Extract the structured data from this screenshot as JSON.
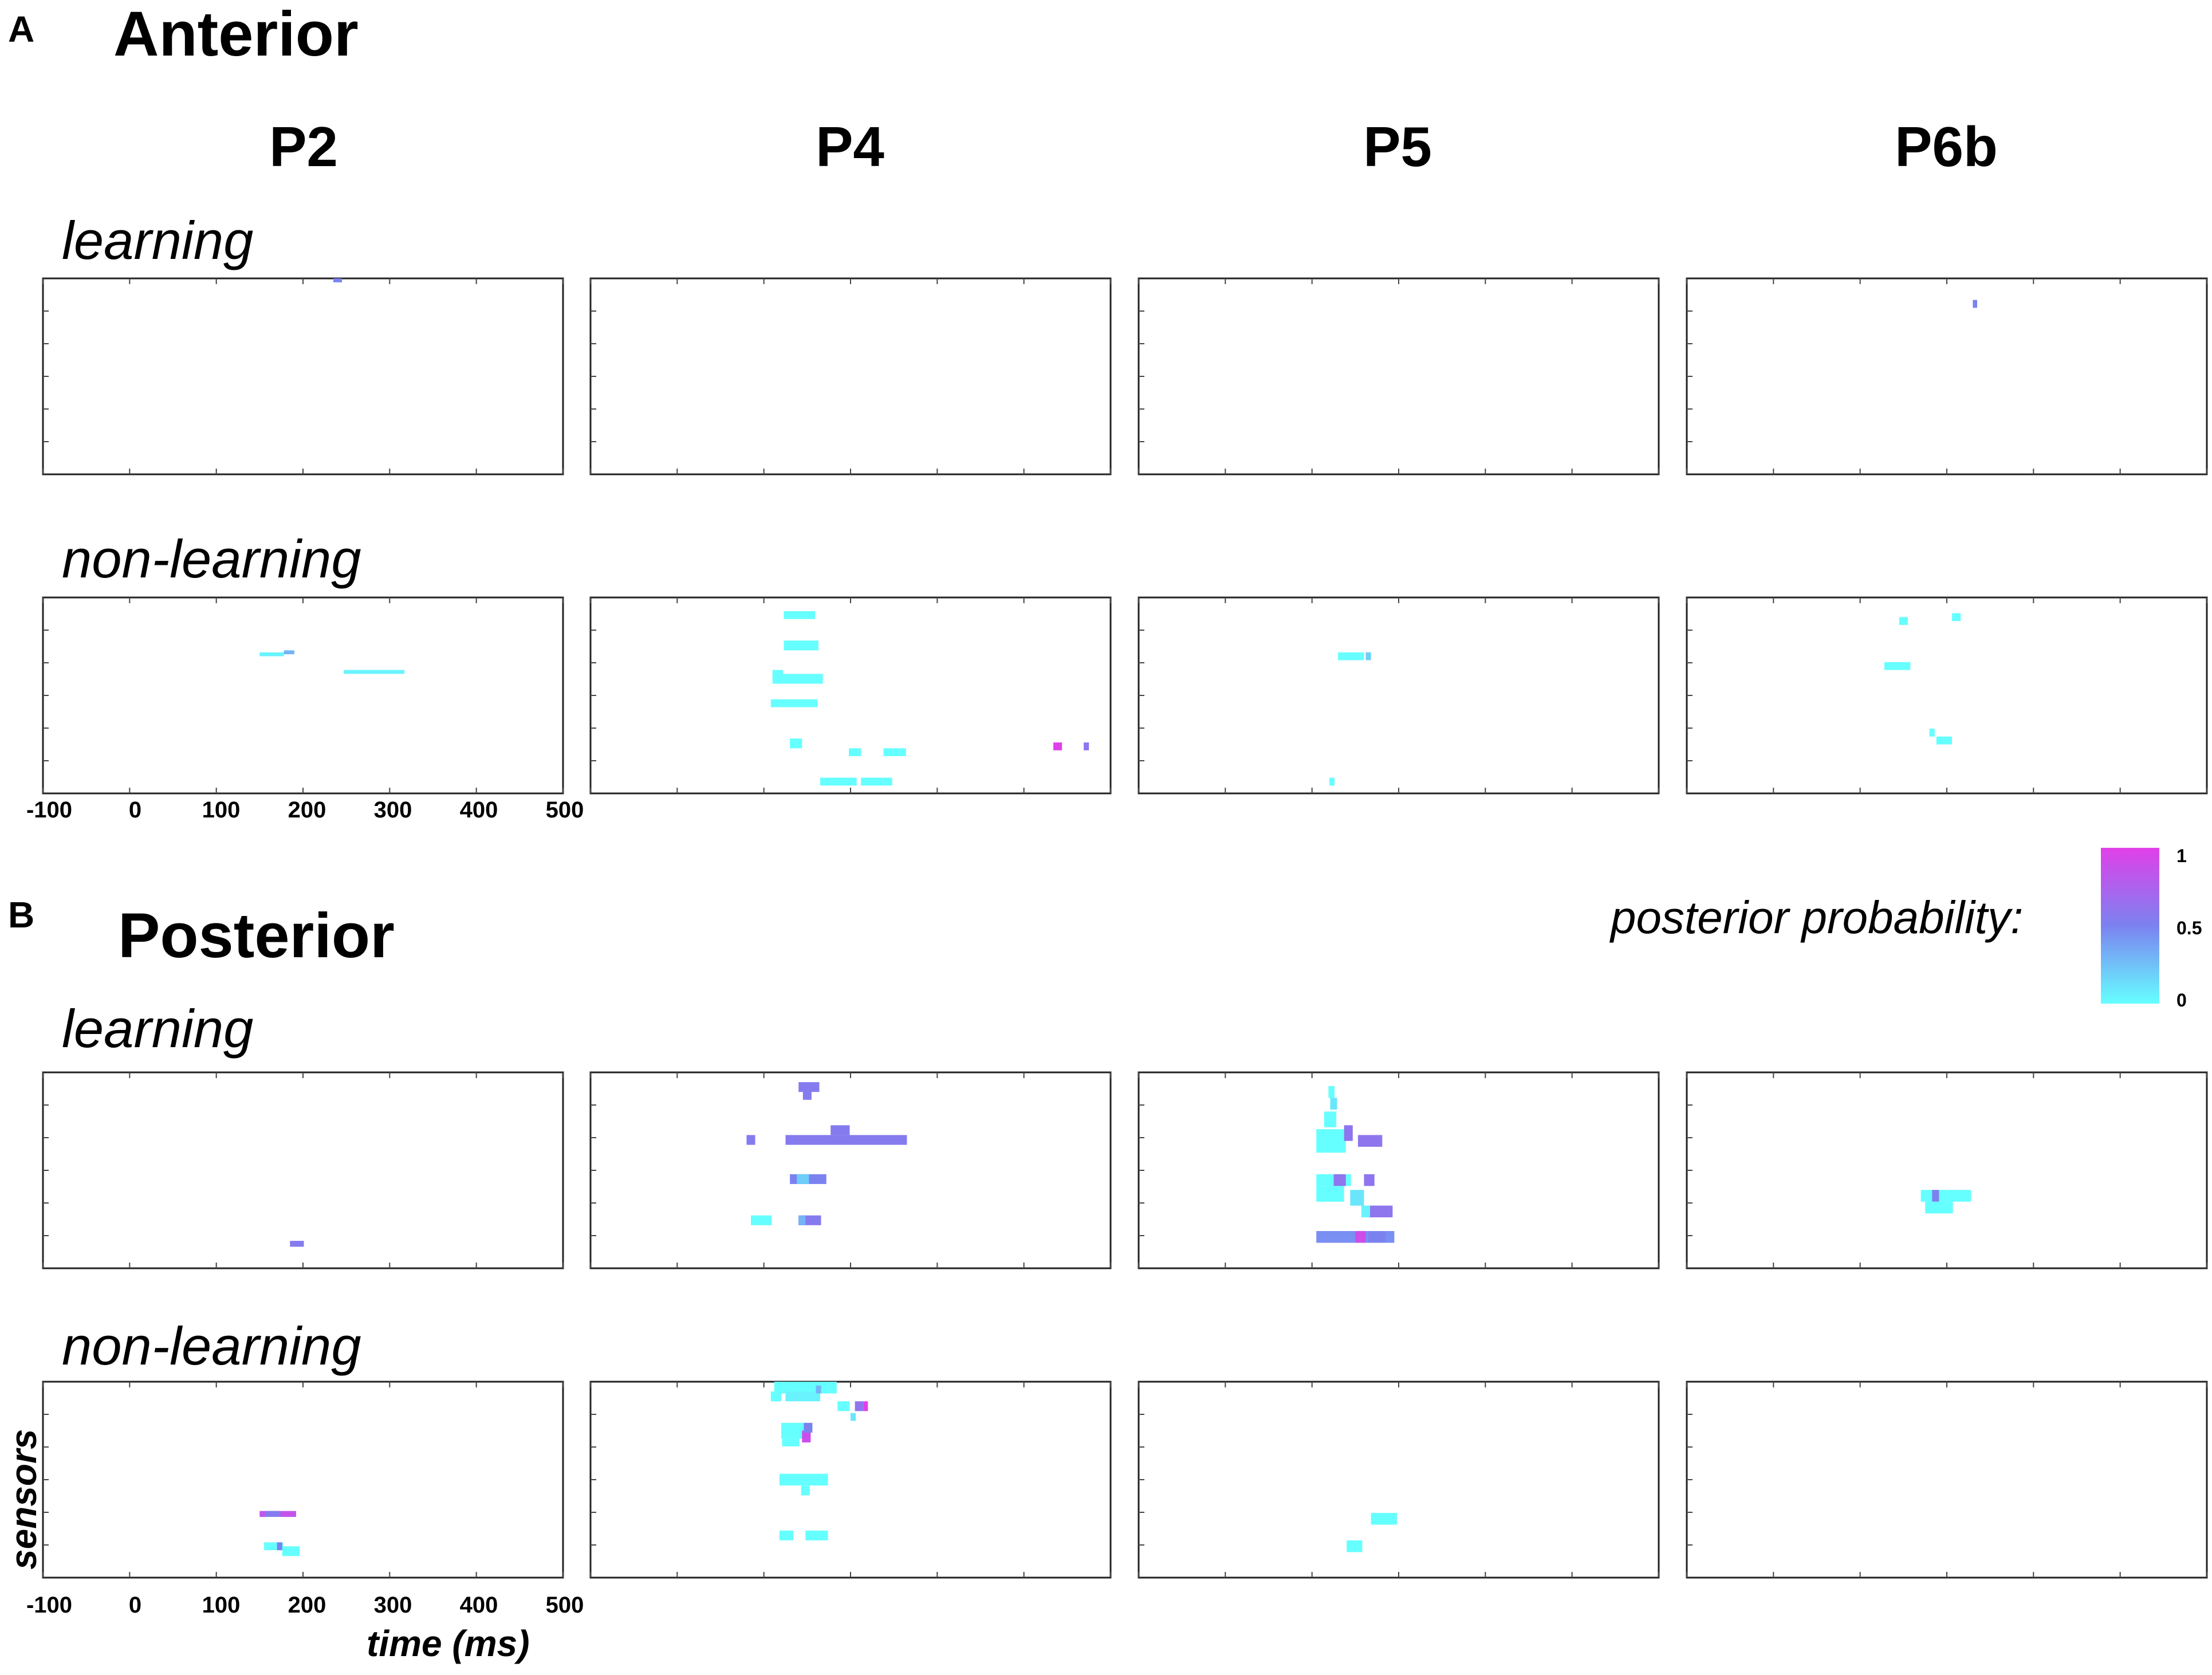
{
  "figure": {
    "panel_a": {
      "letter": "A",
      "title": "Anterior"
    },
    "panel_b": {
      "letter": "B",
      "title": "Posterior"
    },
    "columns": [
      "P2",
      "P4",
      "P5",
      "P6b"
    ],
    "row_labels": {
      "learning": "learning",
      "non_learning": "non-learning"
    },
    "x_ticks": [
      "-100",
      "0",
      "100",
      "200",
      "300",
      "400",
      "500"
    ],
    "xlabel": "time (ms)",
    "ylabel": "sensors",
    "colorbar": {
      "title": "posterior probability:",
      "ticks": [
        "1",
        "0.5",
        "0"
      ]
    },
    "colors": {
      "low": "#66ffff",
      "mid": "#7b82f0",
      "high": "#e040e8"
    }
  },
  "chart_data": {
    "type": "heatmap",
    "xlabel": "time (ms)",
    "ylabel": "sensors",
    "xlim": [
      -100,
      500
    ],
    "ylim": [
      0,
      100
    ],
    "value_range": [
      0,
      1
    ],
    "panels": [
      {
        "region": "Anterior",
        "condition": "learning",
        "participant": "P2",
        "cells": [
          [
            235,
            0,
            10,
            2,
            0.5
          ]
        ]
      },
      {
        "region": "Anterior",
        "condition": "learning",
        "participant": "P4",
        "cells": []
      },
      {
        "region": "Anterior",
        "condition": "learning",
        "participant": "P5",
        "cells": []
      },
      {
        "region": "Anterior",
        "condition": "learning",
        "participant": "P6b",
        "cells": [
          [
            230,
            11,
            5,
            4,
            0.5
          ]
        ]
      },
      {
        "region": "Anterior",
        "condition": "non-learning",
        "participant": "P2",
        "cells": [
          [
            150,
            28,
            28,
            2,
            0.05
          ],
          [
            178,
            27,
            12,
            2,
            0.3
          ],
          [
            247,
            37,
            70,
            2,
            0.05
          ]
        ]
      },
      {
        "region": "Anterior",
        "condition": "non-learning",
        "participant": "P4",
        "cells": [
          [
            123,
            7,
            36,
            4,
            0.0
          ],
          [
            123,
            22,
            40,
            5,
            0.0
          ],
          [
            110,
            37,
            12,
            5,
            0.0
          ],
          [
            110,
            39,
            58,
            5,
            0.0
          ],
          [
            108,
            52,
            54,
            4,
            0.0
          ],
          [
            130,
            72,
            14,
            5,
            0.0
          ],
          [
            165,
            92,
            42,
            4,
            0.0
          ],
          [
            212,
            92,
            36,
            4,
            0.0
          ],
          [
            198,
            77,
            14,
            4,
            0.0
          ],
          [
            238,
            77,
            26,
            4,
            0.0
          ],
          [
            434,
            74,
            10,
            4,
            1.0
          ],
          [
            469,
            74,
            6,
            4,
            0.6
          ]
        ]
      },
      {
        "region": "Anterior",
        "condition": "non-learning",
        "participant": "P5",
        "cells": [
          [
            130,
            28,
            30,
            4,
            0.0
          ],
          [
            162,
            28,
            6,
            4,
            0.2
          ],
          [
            120,
            92,
            6,
            4,
            0.0
          ]
        ]
      },
      {
        "region": "Anterior",
        "condition": "non-learning",
        "participant": "P6b",
        "cells": [
          [
            145,
            10,
            10,
            4,
            0.0
          ],
          [
            206,
            8,
            10,
            4,
            0.0
          ],
          [
            128,
            33,
            30,
            4,
            0.0
          ],
          [
            180,
            67,
            6,
            4,
            0.0
          ],
          [
            188,
            71,
            18,
            4,
            0.0
          ]
        ]
      },
      {
        "region": "Posterior",
        "condition": "learning",
        "participant": "P2",
        "cells": [
          [
            185,
            86,
            16,
            3,
            0.55
          ]
        ]
      },
      {
        "region": "Posterior",
        "condition": "learning",
        "participant": "P4",
        "cells": [
          [
            140,
            5,
            24,
            5,
            0.55
          ],
          [
            145,
            8,
            10,
            6,
            0.55
          ],
          [
            125,
            32,
            140,
            5,
            0.55
          ],
          [
            177,
            27,
            22,
            5,
            0.55
          ],
          [
            80,
            32,
            10,
            5,
            0.55
          ],
          [
            130,
            52,
            42,
            5,
            0.5
          ],
          [
            138,
            52,
            14,
            5,
            0.2
          ],
          [
            85,
            73,
            24,
            5,
            0.0
          ],
          [
            140,
            73,
            26,
            5,
            0.55
          ],
          [
            140,
            73,
            8,
            5,
            0.3
          ]
        ]
      },
      {
        "region": "Posterior",
        "condition": "learning",
        "participant": "P5",
        "cells": [
          [
            119,
            7,
            7,
            6,
            0.0
          ],
          [
            121,
            13,
            8,
            6,
            0.1
          ],
          [
            114,
            20,
            14,
            8,
            0.0
          ],
          [
            105,
            29,
            34,
            12,
            0.0
          ],
          [
            137,
            27,
            10,
            8,
            0.6
          ],
          [
            153,
            32,
            28,
            6,
            0.6
          ],
          [
            105,
            52,
            40,
            6,
            0.0
          ],
          [
            125,
            52,
            14,
            6,
            0.6
          ],
          [
            160,
            52,
            12,
            6,
            0.6
          ],
          [
            105,
            58,
            32,
            8,
            0.0
          ],
          [
            144,
            60,
            16,
            8,
            0.1
          ],
          [
            165,
            68,
            28,
            6,
            0.6
          ],
          [
            157,
            68,
            10,
            6,
            0.05
          ],
          [
            105,
            81,
            90,
            6,
            0.45
          ],
          [
            150,
            81,
            12,
            6,
            0.9
          ],
          [
            165,
            81,
            20,
            6,
            0.5
          ]
        ]
      },
      {
        "region": "Posterior",
        "condition": "learning",
        "participant": "P6b",
        "cells": [
          [
            170,
            60,
            58,
            6,
            0.0
          ],
          [
            175,
            66,
            32,
            6,
            0.0
          ],
          [
            183,
            60,
            8,
            6,
            0.5
          ]
        ]
      },
      {
        "region": "Posterior",
        "condition": "non-learning",
        "participant": "P2",
        "cells": [
          [
            150,
            66,
            42,
            3,
            0.85
          ],
          [
            156,
            66,
            18,
            3,
            0.55
          ],
          [
            155,
            82,
            22,
            4,
            0.0
          ],
          [
            176,
            84,
            20,
            5,
            0.0
          ],
          [
            170,
            82,
            6,
            4,
            0.5
          ]
        ]
      },
      {
        "region": "Posterior",
        "condition": "non-learning",
        "participant": "P4",
        "cells": [
          [
            112,
            0,
            72,
            6,
            0.0
          ],
          [
            108,
            5,
            12,
            5,
            0.0
          ],
          [
            125,
            5,
            40,
            5,
            0.05
          ],
          [
            160,
            2,
            6,
            4,
            0.3
          ],
          [
            185,
            10,
            14,
            5,
            0.0
          ],
          [
            205,
            10,
            10,
            5,
            0.6
          ],
          [
            215,
            10,
            5,
            5,
            1.0
          ],
          [
            200,
            16,
            6,
            4,
            0.1
          ],
          [
            120,
            21,
            28,
            8,
            0.0
          ],
          [
            144,
            25,
            10,
            6,
            0.9
          ],
          [
            146,
            21,
            10,
            5,
            0.5
          ],
          [
            121,
            29,
            20,
            4,
            0.0
          ],
          [
            118,
            47,
            56,
            6,
            0.0
          ],
          [
            143,
            53,
            10,
            5,
            0.0
          ],
          [
            118,
            76,
            16,
            5,
            0.0
          ],
          [
            148,
            76,
            26,
            5,
            0.0
          ]
        ]
      },
      {
        "region": "Posterior",
        "condition": "non-learning",
        "participant": "P5",
        "cells": [
          [
            168,
            67,
            30,
            6,
            0.0
          ],
          [
            140,
            81,
            18,
            6,
            0.0
          ]
        ]
      },
      {
        "region": "Posterior",
        "condition": "non-learning",
        "participant": "P6b",
        "cells": []
      }
    ]
  }
}
